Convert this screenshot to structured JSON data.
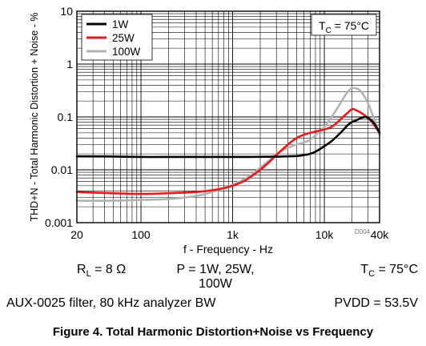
{
  "chart_data": {
    "type": "line",
    "xlabel": "f - Frequency - Hz",
    "ylabel": "THD+N - Total Harmonic Distortion + Noise - %",
    "xscale": "log",
    "yscale": "log",
    "xlim": [
      20,
      40000
    ],
    "ylim": [
      0.001,
      10
    ],
    "grid": true,
    "x_ticks": [
      {
        "value": 20,
        "label": "20"
      },
      {
        "value": 100,
        "label": "100"
      },
      {
        "value": 1000,
        "label": "1k"
      },
      {
        "value": 10000,
        "label": "10k"
      },
      {
        "value": 40000,
        "label": "40k"
      }
    ],
    "y_ticks": [
      {
        "value": 0.001,
        "label": "0.001"
      },
      {
        "value": 0.01,
        "label": "0.01"
      },
      {
        "value": 0.1,
        "label": "0.1"
      },
      {
        "value": 1,
        "label": "1"
      },
      {
        "value": 10,
        "label": "10"
      }
    ],
    "legend_position": "top-left",
    "annotation": {
      "main": "T",
      "sub": "C",
      "rest": " = 75°C"
    },
    "figure_id": "D004",
    "series": [
      {
        "name": "1W",
        "color": "#000000",
        "x": [
          20,
          50,
          100,
          200,
          500,
          1000,
          1500,
          2000,
          3000,
          4000,
          5000,
          6000,
          7000,
          8000,
          10000,
          12000,
          15000,
          18000,
          20000,
          22000,
          25000,
          28000,
          30000,
          33000,
          36000,
          40000
        ],
        "y": [
          0.018,
          0.0178,
          0.0175,
          0.0175,
          0.0175,
          0.0175,
          0.0175,
          0.0176,
          0.0177,
          0.018,
          0.0182,
          0.019,
          0.02,
          0.022,
          0.028,
          0.035,
          0.05,
          0.07,
          0.08,
          0.085,
          0.095,
          0.1,
          0.095,
          0.085,
          0.07,
          0.05
        ]
      },
      {
        "name": "25W",
        "color": "#e8191c",
        "x": [
          20,
          30,
          50,
          100,
          200,
          400,
          600,
          800,
          1000,
          1300,
          1600,
          2000,
          2500,
          3000,
          4000,
          5000,
          6000,
          7000,
          8000,
          10000,
          12000,
          14000,
          16000,
          18000,
          20000,
          22000,
          25000,
          28000,
          30000,
          33000,
          36000,
          40000
        ],
        "y": [
          0.0038,
          0.0037,
          0.0036,
          0.0035,
          0.0036,
          0.0038,
          0.0041,
          0.0045,
          0.005,
          0.006,
          0.0075,
          0.01,
          0.014,
          0.019,
          0.03,
          0.04,
          0.046,
          0.05,
          0.053,
          0.058,
          0.065,
          0.08,
          0.1,
          0.12,
          0.14,
          0.135,
          0.12,
          0.105,
          0.095,
          0.08,
          0.065,
          0.05
        ]
      },
      {
        "name": "100W",
        "color": "#b3b3b3",
        "x": [
          20,
          50,
          100,
          200,
          400,
          600,
          800,
          1000,
          1300,
          1600,
          2000,
          2500,
          3000,
          4000,
          5000,
          6000,
          7000,
          8000,
          10000,
          12000,
          14000,
          16000,
          18000,
          20000,
          23000,
          26000,
          30000,
          35000,
          40000
        ],
        "y": [
          0.0026,
          0.0026,
          0.0027,
          0.0028,
          0.0032,
          0.0038,
          0.0045,
          0.0052,
          0.0065,
          0.008,
          0.011,
          0.015,
          0.02,
          0.026,
          0.03,
          0.033,
          0.037,
          0.045,
          0.065,
          0.1,
          0.15,
          0.22,
          0.3,
          0.35,
          0.34,
          0.28,
          0.18,
          0.09,
          0.045
        ]
      }
    ]
  },
  "conditions": {
    "rl": {
      "main": "R",
      "sub": "L",
      "rest": " = 8 Ω"
    },
    "power_line1": "P = 1W, 25W,",
    "power_line2": "100W",
    "tc": {
      "main": "T",
      "sub": "C",
      "rest": " = 75°C"
    },
    "filter": "AUX-0025 filter, 80 kHz analyzer BW",
    "pvdd": "PVDD = 53.5V"
  },
  "caption": "Figure 4. Total Harmonic Distortion+Noise vs Frequency"
}
